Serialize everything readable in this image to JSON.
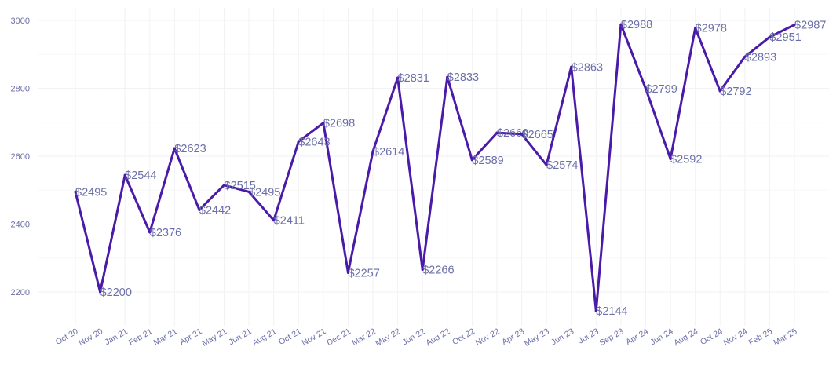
{
  "chart_data": {
    "type": "line",
    "title": "",
    "xlabel": "",
    "ylabel": "",
    "ylim": [
      2100,
      3030
    ],
    "yticks": [
      2200,
      2400,
      2600,
      2800,
      3000
    ],
    "grid": true,
    "label_prefix": "$",
    "line_color": "#4a1aa8",
    "text_color": "#6b6fa8",
    "categories": [
      "Oct 20",
      "Nov 20",
      "Jan 21",
      "Feb 21",
      "Mar 21",
      "Apr 21",
      "May 21",
      "Jun 21",
      "Aug 21",
      "Oct 21",
      "Nov 21",
      "Dec 21",
      "Mar 22",
      "May 22",
      "Jun 22",
      "Aug 22",
      "Oct 22",
      "Nov 22",
      "Apr 23",
      "May 23",
      "Jun 23",
      "Jul 23",
      "Sep 23",
      "Apr 24",
      "Jun 24",
      "Aug 24",
      "Oct 24",
      "Nov 24",
      "Feb 25",
      "Mar 25"
    ],
    "values": [
      2495,
      2200,
      2544,
      2376,
      2623,
      2442,
      2515,
      2495,
      2411,
      2643,
      2698,
      2257,
      2614,
      2831,
      2266,
      2833,
      2589,
      2669,
      2665,
      2574,
      2863,
      2144,
      2988,
      2799,
      2592,
      2978,
      2792,
      2893,
      2951,
      2987
    ]
  }
}
